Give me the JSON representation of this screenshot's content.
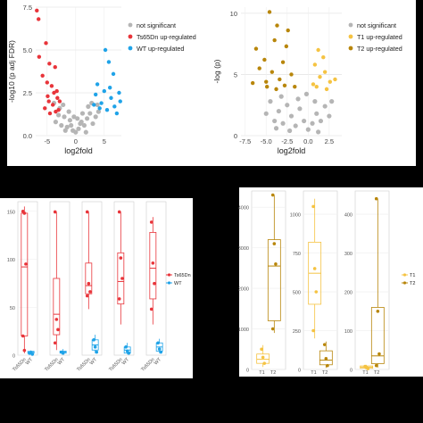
{
  "chart_data": [
    {
      "type": "scatter",
      "title": "",
      "xlabel": "log2fold",
      "ylabel": "-log10 (p adj FDR)",
      "xlim": [
        -7,
        8
      ],
      "ylim": [
        0,
        7.5
      ],
      "xticks": [
        "-5",
        "0",
        "5"
      ],
      "yticks": [
        "0.0",
        "2.5",
        "5.0",
        "7.5"
      ],
      "grid": true,
      "legend_position": "right",
      "series": [
        {
          "name": "not significant",
          "color": "#b5b5b5",
          "points": [
            [
              -3.5,
              0.8
            ],
            [
              -3,
              1.2
            ],
            [
              -2.5,
              0.6
            ],
            [
              -2,
              1.1
            ],
            [
              -1.5,
              0.5
            ],
            [
              -1,
              0.9
            ],
            [
              -0.5,
              0.3
            ],
            [
              0,
              0.2
            ],
            [
              0.5,
              0.4
            ],
            [
              1,
              0.8
            ],
            [
              1.5,
              0.6
            ],
            [
              2,
              1.0
            ],
            [
              2.5,
              1.3
            ],
            [
              3,
              0.7
            ],
            [
              3.5,
              1.1
            ],
            [
              4,
              1.4
            ],
            [
              -2.8,
              1.6
            ],
            [
              -2.2,
              1.8
            ],
            [
              2.2,
              1.7
            ],
            [
              2.8,
              1.9
            ],
            [
              -1.2,
              1.4
            ],
            [
              1.2,
              1.3
            ],
            [
              -0.8,
              0.6
            ],
            [
              0.8,
              0.7
            ],
            [
              -3.8,
              1.9
            ],
            [
              3.8,
              1.8
            ],
            [
              -1.8,
              0.3
            ],
            [
              1.8,
              0.2
            ],
            [
              0.3,
              1.0
            ],
            [
              -0.3,
              1.1
            ]
          ]
        },
        {
          "name": "Ts65Dn up-regulated",
          "color": "#e8343a",
          "points": [
            [
              -6.8,
              7.3
            ],
            [
              -6.5,
              6.8
            ],
            [
              -5.2,
              5.4
            ],
            [
              -6.4,
              4.6
            ],
            [
              -4.6,
              4.2
            ],
            [
              -3.6,
              4.0
            ],
            [
              -5.8,
              3.5
            ],
            [
              -5.0,
              3.1
            ],
            [
              -4.2,
              2.9
            ],
            [
              -3.8,
              2.5
            ],
            [
              -3.2,
              2.2
            ],
            [
              -4.7,
              2.0
            ],
            [
              -5.4,
              1.6
            ],
            [
              -3.0,
              1.5
            ],
            [
              -4.5,
              1.3
            ],
            [
              -3.5,
              1.4
            ],
            [
              -2.8,
              2.0
            ],
            [
              -4.0,
              1.8
            ],
            [
              -3.3,
              2.6
            ],
            [
              -4.9,
              2.3
            ]
          ]
        },
        {
          "name": "WT up-regulated",
          "color": "#1fa3e8",
          "points": [
            [
              5.2,
              5.0
            ],
            [
              5.8,
              4.3
            ],
            [
              6.6,
              3.6
            ],
            [
              3.8,
              3.0
            ],
            [
              5.0,
              2.6
            ],
            [
              6.2,
              2.2
            ],
            [
              3.5,
              2.4
            ],
            [
              7.6,
              2.5
            ],
            [
              4.5,
              1.9
            ],
            [
              6.8,
              1.7
            ],
            [
              5.5,
              1.5
            ],
            [
              7.2,
              1.3
            ],
            [
              4.2,
              1.6
            ],
            [
              6.0,
              2.8
            ],
            [
              3.2,
              1.8
            ],
            [
              7.8,
              2.0
            ]
          ]
        }
      ]
    },
    {
      "type": "scatter",
      "title": "",
      "xlabel": "log2fold",
      "ylabel": "-log (p)",
      "xlim": [
        -8,
        4
      ],
      "ylim": [
        0,
        10.5
      ],
      "xticks": [
        "-7.5",
        "-5.0",
        "-2.5",
        "0.0",
        "2.5"
      ],
      "yticks": [
        "0",
        "5",
        "10"
      ],
      "grid": true,
      "legend_position": "right",
      "series": [
        {
          "name": "not significant",
          "color": "#b5b5b5",
          "points": [
            [
              -4,
              1.2
            ],
            [
              -3.5,
              2.0
            ],
            [
              -3,
              1.0
            ],
            [
              -2.5,
              2.5
            ],
            [
              -2,
              1.6
            ],
            [
              -1.5,
              0.8
            ],
            [
              -1,
              2.2
            ],
            [
              -0.5,
              1.2
            ],
            [
              0,
              0.5
            ],
            [
              0.5,
              1.0
            ],
            [
              1,
              1.8
            ],
            [
              1.5,
              1.2
            ],
            [
              2,
              2.4
            ],
            [
              2.5,
              1.6
            ],
            [
              -4.5,
              2.8
            ],
            [
              -3.2,
              3.2
            ],
            [
              -1.2,
              3.0
            ],
            [
              0.8,
              2.8
            ],
            [
              -2.2,
              0.4
            ],
            [
              1.2,
              0.3
            ],
            [
              -5,
              1.8
            ],
            [
              -0.2,
              3.4
            ],
            [
              -3.8,
              0.6
            ],
            [
              2.8,
              2.8
            ]
          ]
        },
        {
          "name": "T1 up-regulated",
          "color": "#f5c342",
          "points": [
            [
              1.2,
              7.0
            ],
            [
              1.8,
              6.4
            ],
            [
              0.8,
              5.8
            ],
            [
              2.0,
              5.2
            ],
            [
              1.4,
              4.8
            ],
            [
              2.6,
              4.4
            ],
            [
              0.6,
              4.2
            ],
            [
              3.2,
              4.6
            ],
            [
              1.0,
              4.0
            ],
            [
              2.2,
              3.8
            ]
          ]
        },
        {
          "name": "T2 up-regulated",
          "color": "#b8860b",
          "points": [
            [
              -4.6,
              10.1
            ],
            [
              -3.7,
              9.0
            ],
            [
              -2.4,
              8.6
            ],
            [
              -4.0,
              7.8
            ],
            [
              -2.6,
              7.3
            ],
            [
              -6.2,
              7.1
            ],
            [
              -5.2,
              6.2
            ],
            [
              -3.0,
              6.0
            ],
            [
              -5.8,
              5.5
            ],
            [
              -4.3,
              5.2
            ],
            [
              -2.0,
              5.0
            ],
            [
              -3.4,
              4.6
            ],
            [
              -5.0,
              4.4
            ],
            [
              -2.8,
              4.1
            ],
            [
              -1.6,
              4.0
            ],
            [
              -6.6,
              4.3
            ],
            [
              -3.8,
              3.8
            ],
            [
              -4.9,
              4.0
            ]
          ]
        }
      ]
    },
    {
      "type": "box",
      "legend_position": "right",
      "legend": [
        {
          "name": "Ts65Dn",
          "color": "#e8343a"
        },
        {
          "name": "WT",
          "color": "#1fa3e8"
        }
      ],
      "category_labels": [
        "Ts65Dn",
        "WT"
      ],
      "panels": [
        {
          "ylim": [
            0,
            160
          ],
          "yticks": [
            "0",
            "50",
            "100",
            "150"
          ],
          "groups": [
            {
              "name": "Ts65Dn",
              "q1": 20,
              "median": 92,
              "q3": 148,
              "min": 2,
              "max": 155,
              "points": [
                150,
                148,
                95,
                20,
                5
              ]
            },
            {
              "name": "WT",
              "q1": 2,
              "median": 3,
              "q3": 4,
              "min": 1,
              "max": 5,
              "points": [
                2,
                3,
                1
              ]
            }
          ]
        },
        {
          "ylim": [
            0,
            150
          ],
          "yticks": [],
          "groups": [
            {
              "name": "Ts65Dn",
              "q1": 20,
              "median": 40,
              "q3": 75,
              "min": 5,
              "max": 140,
              "points": [
                140,
                35,
                25,
                12
              ]
            },
            {
              "name": "WT",
              "q1": 2,
              "median": 3,
              "q3": 4,
              "min": 1,
              "max": 6,
              "points": [
                3,
                2
              ]
            }
          ]
        },
        {
          "ylim": [
            0,
            150
          ],
          "yticks": [],
          "groups": [
            {
              "name": "Ts65Dn",
              "q1": 60,
              "median": 68,
              "q3": 90,
              "min": 45,
              "max": 140,
              "points": [
                140,
                70,
                62,
                58
              ]
            },
            {
              "name": "WT",
              "q1": 5,
              "median": 10,
              "q3": 15,
              "min": 2,
              "max": 20,
              "points": [
                15,
                8,
                3
              ]
            }
          ]
        },
        {
          "ylim": [
            0,
            150
          ],
          "yticks": [],
          "groups": [
            {
              "name": "Ts65Dn",
              "q1": 50,
              "median": 72,
              "q3": 100,
              "min": 30,
              "max": 140,
              "points": [
                140,
                95,
                75,
                55
              ]
            },
            {
              "name": "WT",
              "q1": 2,
              "median": 5,
              "q3": 8,
              "min": 1,
              "max": 12,
              "points": [
                8,
                4,
                2
              ]
            }
          ]
        },
        {
          "ylim": [
            0,
            150
          ],
          "yticks": [],
          "groups": [
            {
              "name": "Ts65Dn",
              "q1": 55,
              "median": 85,
              "q3": 120,
              "min": 30,
              "max": 135,
              "points": [
                130,
                90,
                70,
                45
              ]
            },
            {
              "name": "WT",
              "q1": 4,
              "median": 8,
              "q3": 12,
              "min": 2,
              "max": 16,
              "points": [
                12,
                6,
                3
              ]
            }
          ]
        }
      ]
    },
    {
      "type": "box",
      "legend_position": "right",
      "legend": [
        {
          "name": "T1",
          "color": "#f5c342"
        },
        {
          "name": "T2",
          "color": "#b8860b"
        }
      ],
      "category_labels": [
        "T1",
        "T2"
      ],
      "panels": [
        {
          "ylim": [
            0,
            4400
          ],
          "yticks": [
            "0",
            "1000",
            "2000",
            "3000",
            "4000"
          ],
          "groups": [
            {
              "name": "T1",
              "q1": 150,
              "median": 250,
              "q3": 380,
              "min": 60,
              "max": 600,
              "points": [
                500,
                300,
                150
              ]
            },
            {
              "name": "T2",
              "q1": 1200,
              "median": 2550,
              "q3": 3200,
              "min": 900,
              "max": 4300,
              "points": [
                4300,
                3100,
                2600,
                1000
              ]
            }
          ]
        },
        {
          "ylim": [
            0,
            1150
          ],
          "yticks": [
            "0",
            "250",
            "500",
            "750",
            "1000"
          ],
          "groups": [
            {
              "name": "T1",
              "q1": 420,
              "median": 620,
              "q3": 820,
              "min": 200,
              "max": 1100,
              "points": [
                1050,
                650,
                500,
                250
              ]
            },
            {
              "name": "T2",
              "q1": 30,
              "median": 60,
              "q3": 120,
              "min": 10,
              "max": 180,
              "points": [
                160,
                70,
                25
              ]
            }
          ]
        },
        {
          "ylim": [
            0,
            460
          ],
          "yticks": [
            "0",
            "100",
            "200",
            "300",
            "400"
          ],
          "groups": [
            {
              "name": "T1",
              "q1": 3,
              "median": 6,
              "q3": 9,
              "min": 1,
              "max": 12,
              "points": [
                8,
                5,
                2
              ]
            },
            {
              "name": "T2",
              "q1": 15,
              "median": 35,
              "q3": 160,
              "min": 5,
              "max": 440,
              "points": [
                440,
                150,
                40,
                10
              ]
            }
          ]
        }
      ]
    }
  ]
}
